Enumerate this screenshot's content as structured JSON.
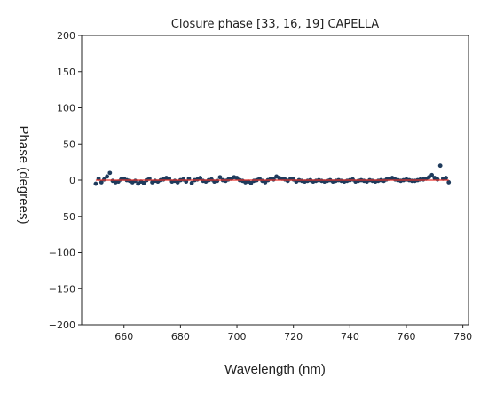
{
  "chart_data": {
    "type": "scatter",
    "title": "Closure phase [33, 16, 19] CAPELLA",
    "xlabel": "Wavelength (nm)",
    "ylabel": "Phase (degrees)",
    "xlim": [
      645,
      782
    ],
    "ylim": [
      -200,
      200
    ],
    "xticks": [
      660,
      680,
      700,
      720,
      740,
      760,
      780
    ],
    "xtick_labels": [
      "660",
      "680",
      "700",
      "720",
      "740",
      "760",
      "780"
    ],
    "yticks": [
      200,
      150,
      100,
      50,
      0,
      -50,
      -100,
      -150,
      -200
    ],
    "ytick_labels": [
      "200",
      "150",
      "100",
      "50",
      "0",
      "−50",
      "−100",
      "−150",
      "−200"
    ],
    "grid": false,
    "series": [
      {
        "marker": "dot",
        "color": "#1f3b5c",
        "x": [
          650,
          651,
          652,
          653,
          654,
          655,
          656,
          657,
          658,
          659,
          660,
          661,
          662,
          663,
          664,
          665,
          666,
          667,
          668,
          669,
          670,
          671,
          672,
          673,
          674,
          675,
          676,
          677,
          678,
          679,
          680,
          681,
          682,
          683,
          684,
          685,
          686,
          687,
          688,
          689,
          690,
          691,
          692,
          693,
          694,
          695,
          696,
          697,
          698,
          699,
          700,
          701,
          702,
          703,
          704,
          705,
          706,
          707,
          708,
          709,
          710,
          711,
          712,
          713,
          714,
          715,
          716,
          717,
          718,
          719,
          720,
          721,
          722,
          723,
          724,
          725,
          726,
          727,
          728,
          729,
          730,
          731,
          732,
          733,
          734,
          735,
          736,
          737,
          738,
          739,
          740,
          741,
          742,
          743,
          744,
          745,
          746,
          747,
          748,
          749,
          750,
          751,
          752,
          753,
          754,
          755,
          756,
          757,
          758,
          759,
          760,
          761,
          762,
          763,
          764,
          765,
          766,
          767,
          768,
          769,
          770,
          771,
          772,
          773,
          774,
          775
        ],
        "y": [
          -5,
          2,
          -3,
          1,
          5,
          10,
          -1,
          -3,
          -2,
          1,
          2,
          0,
          -1,
          -3,
          -1,
          -5,
          -2,
          -4,
          0,
          2,
          -3,
          -1,
          -2,
          0,
          1,
          3,
          2,
          -2,
          -1,
          -3,
          0,
          1,
          -2,
          2,
          -4,
          0,
          1,
          3,
          -1,
          -2,
          0,
          1,
          -2,
          -1,
          4,
          0,
          -1,
          1,
          2,
          4,
          3,
          0,
          -1,
          -3,
          -2,
          -4,
          -1,
          0,
          2,
          -1,
          -3,
          0,
          2,
          1,
          5,
          3,
          2,
          1,
          -1,
          2,
          1,
          -2,
          0,
          -1,
          -2,
          -1,
          0,
          -2,
          -1,
          0,
          -1,
          -2,
          -1,
          0,
          -2,
          -1,
          0,
          -1,
          -2,
          -1,
          0,
          1,
          -2,
          -1,
          0,
          -1,
          -2,
          0,
          -1,
          -2,
          -1,
          0,
          -1,
          1,
          2,
          3,
          1,
          0,
          -1,
          0,
          1,
          0,
          -1,
          -1,
          0,
          1,
          1,
          2,
          4,
          7,
          3,
          1,
          20,
          2,
          3,
          -3
        ]
      },
      {
        "marker": "line",
        "color": "#e8322a",
        "x": [
          650,
          775
        ],
        "y": [
          0,
          0
        ]
      }
    ]
  }
}
